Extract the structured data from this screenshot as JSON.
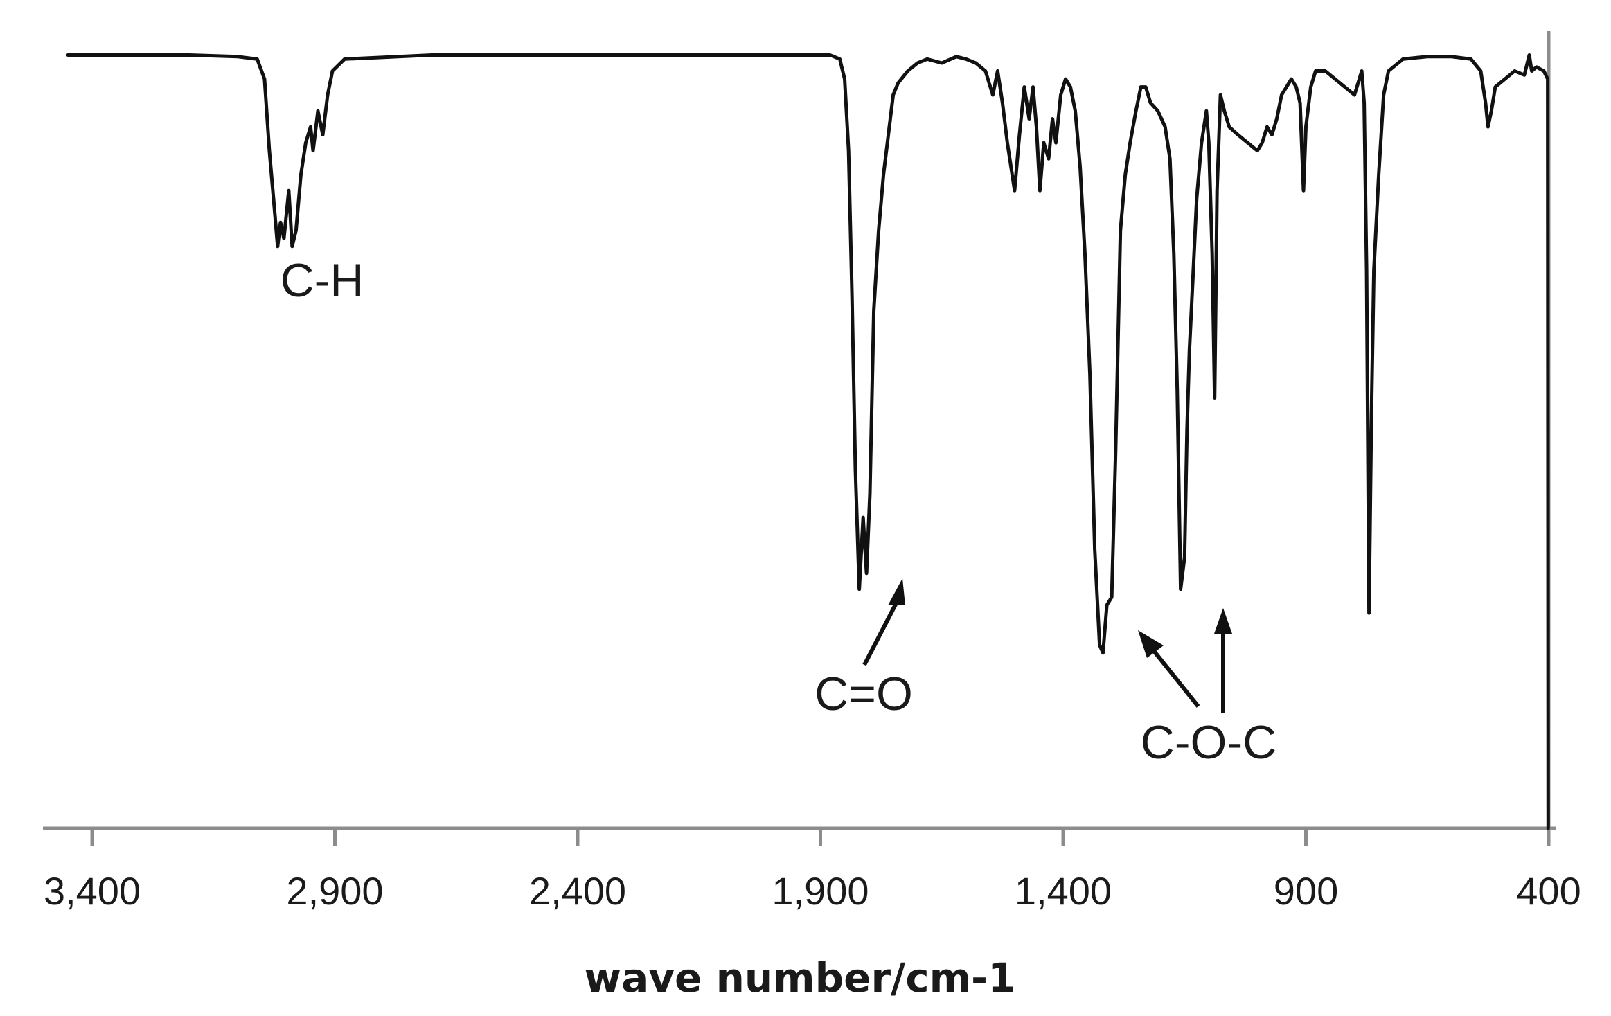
{
  "chart_data": {
    "type": "line",
    "title": "",
    "xlabel": "wave number/cm-1",
    "ylabel": "",
    "x_reversed": true,
    "xlim": [
      3450,
      400
    ],
    "ylim": [
      0,
      100
    ],
    "x_ticks": [
      {
        "value": 3400,
        "label": "3,400"
      },
      {
        "value": 2900,
        "label": "2,900"
      },
      {
        "value": 2400,
        "label": "2,400"
      },
      {
        "value": 1900,
        "label": "1,900"
      },
      {
        "value": 1400,
        "label": "1,400"
      },
      {
        "value": 900,
        "label": "900"
      },
      {
        "value": 400,
        "label": "400"
      }
    ],
    "y_axis_visible": false,
    "grid": false,
    "legend": "none",
    "series": [
      {
        "points": [
          [
            3450,
            97
          ],
          [
            3300,
            97
          ],
          [
            3200,
            97
          ],
          [
            3100,
            96.8
          ],
          [
            3060,
            96.5
          ],
          [
            3045,
            94
          ],
          [
            3035,
            85
          ],
          [
            3025,
            78
          ],
          [
            3018,
            73
          ],
          [
            3012,
            76
          ],
          [
            3005,
            74
          ],
          [
            2995,
            80
          ],
          [
            2988,
            73
          ],
          [
            2980,
            75
          ],
          [
            2970,
            82
          ],
          [
            2960,
            86
          ],
          [
            2950,
            88
          ],
          [
            2945,
            85
          ],
          [
            2935,
            90
          ],
          [
            2925,
            87
          ],
          [
            2915,
            92
          ],
          [
            2905,
            95
          ],
          [
            2880,
            96.5
          ],
          [
            2700,
            97
          ],
          [
            2400,
            97
          ],
          [
            2100,
            97
          ],
          [
            1880,
            97
          ],
          [
            1860,
            96.5
          ],
          [
            1850,
            94
          ],
          [
            1842,
            85
          ],
          [
            1835,
            67
          ],
          [
            1828,
            45
          ],
          [
            1820,
            30
          ],
          [
            1812,
            39
          ],
          [
            1805,
            32
          ],
          [
            1798,
            42
          ],
          [
            1790,
            65
          ],
          [
            1780,
            75
          ],
          [
            1770,
            82
          ],
          [
            1760,
            87
          ],
          [
            1750,
            92
          ],
          [
            1740,
            93.5
          ],
          [
            1720,
            95
          ],
          [
            1700,
            96
          ],
          [
            1680,
            96.5
          ],
          [
            1650,
            96
          ],
          [
            1620,
            96.8
          ],
          [
            1600,
            96.5
          ],
          [
            1580,
            96
          ],
          [
            1560,
            95
          ],
          [
            1545,
            92
          ],
          [
            1535,
            95
          ],
          [
            1525,
            91
          ],
          [
            1515,
            86
          ],
          [
            1500,
            80
          ],
          [
            1490,
            87
          ],
          [
            1480,
            93
          ],
          [
            1470,
            89
          ],
          [
            1462,
            93
          ],
          [
            1455,
            88
          ],
          [
            1448,
            80
          ],
          [
            1440,
            86
          ],
          [
            1430,
            84
          ],
          [
            1422,
            89
          ],
          [
            1415,
            86
          ],
          [
            1405,
            92
          ],
          [
            1395,
            94
          ],
          [
            1385,
            93
          ],
          [
            1375,
            90
          ],
          [
            1365,
            83
          ],
          [
            1355,
            72
          ],
          [
            1345,
            57
          ],
          [
            1335,
            35
          ],
          [
            1325,
            23
          ],
          [
            1318,
            22
          ],
          [
            1310,
            28
          ],
          [
            1300,
            29
          ],
          [
            1292,
            47
          ],
          [
            1282,
            75
          ],
          [
            1272,
            82
          ],
          [
            1262,
            86
          ],
          [
            1250,
            90
          ],
          [
            1240,
            93
          ],
          [
            1230,
            93
          ],
          [
            1220,
            91
          ],
          [
            1205,
            90
          ],
          [
            1190,
            88
          ],
          [
            1180,
            84
          ],
          [
            1172,
            72
          ],
          [
            1165,
            55
          ],
          [
            1158,
            30
          ],
          [
            1150,
            34
          ],
          [
            1145,
            50
          ],
          [
            1140,
            60
          ],
          [
            1132,
            70
          ],
          [
            1125,
            79
          ],
          [
            1115,
            86
          ],
          [
            1105,
            90
          ],
          [
            1100,
            86
          ],
          [
            1093,
            72
          ],
          [
            1088,
            54
          ],
          [
            1083,
            80
          ],
          [
            1076,
            92
          ],
          [
            1068,
            90
          ],
          [
            1058,
            88
          ],
          [
            1040,
            87
          ],
          [
            1020,
            86
          ],
          [
            1000,
            85
          ],
          [
            990,
            86
          ],
          [
            980,
            88
          ],
          [
            970,
            87
          ],
          [
            960,
            89
          ],
          [
            950,
            92
          ],
          [
            940,
            93
          ],
          [
            930,
            94
          ],
          [
            920,
            93
          ],
          [
            912,
            91
          ],
          [
            905,
            80
          ],
          [
            900,
            88
          ],
          [
            890,
            93
          ],
          [
            880,
            95
          ],
          [
            860,
            95
          ],
          [
            840,
            94
          ],
          [
            820,
            93
          ],
          [
            800,
            92
          ],
          [
            790,
            94
          ],
          [
            785,
            95
          ],
          [
            780,
            91
          ],
          [
            775,
            70
          ],
          [
            770,
            27
          ],
          [
            765,
            52
          ],
          [
            760,
            70
          ],
          [
            755,
            76
          ],
          [
            750,
            82
          ],
          [
            740,
            92
          ],
          [
            730,
            95
          ],
          [
            700,
            96.5
          ],
          [
            650,
            96.8
          ],
          [
            600,
            96.8
          ],
          [
            560,
            96.5
          ],
          [
            540,
            95
          ],
          [
            530,
            91
          ],
          [
            525,
            88
          ],
          [
            518,
            90
          ],
          [
            510,
            93
          ],
          [
            490,
            94
          ],
          [
            470,
            95
          ],
          [
            450,
            94.5
          ],
          [
            440,
            97
          ],
          [
            435,
            95
          ],
          [
            425,
            95.5
          ],
          [
            410,
            95
          ],
          [
            402,
            94
          ],
          [
            401,
            0
          ]
        ]
      }
    ],
    "annotations": [
      {
        "text": "C-H"
      },
      {
        "text": "C=O"
      },
      {
        "text": "C-O-C"
      }
    ]
  }
}
